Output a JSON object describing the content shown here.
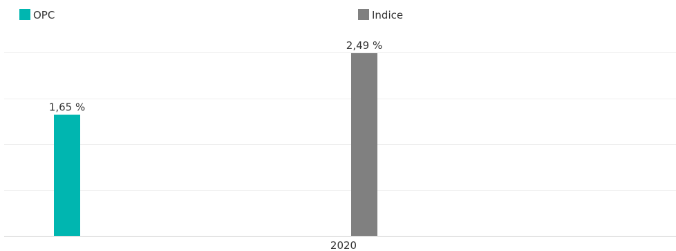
{
  "chart_data": {
    "type": "bar",
    "categories": [
      "2020"
    ],
    "series": [
      {
        "name": "OPC",
        "values": [
          1.65
        ],
        "labels": [
          "1,65 %"
        ],
        "color": "#00b6b0"
      },
      {
        "name": "Indice",
        "values": [
          2.49
        ],
        "labels": [
          "2,49 %"
        ],
        "color": "#808080"
      }
    ],
    "ylim": [
      0,
      2.5
    ],
    "grid": true,
    "legend_position": "top",
    "axis_color": "#cccccc",
    "grid_color": "#eeeeee"
  }
}
